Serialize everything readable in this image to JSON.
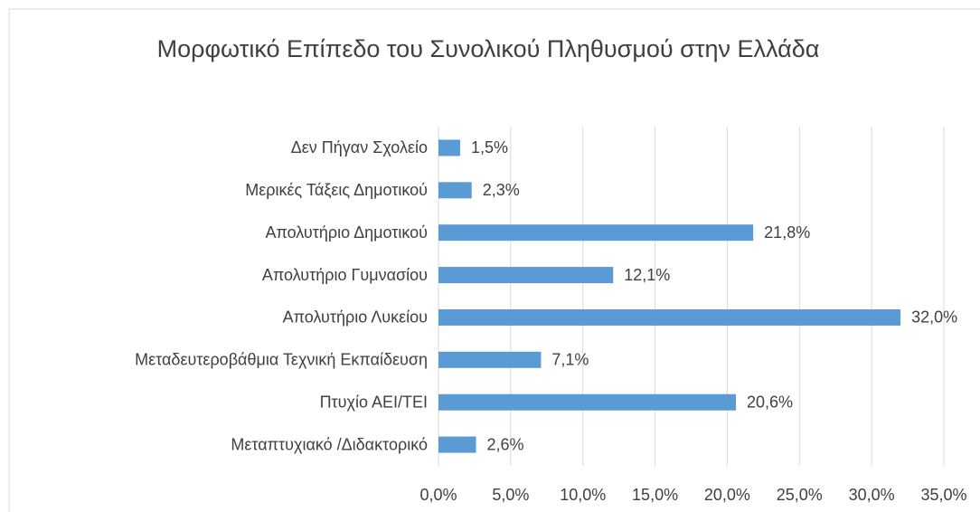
{
  "chart_data": {
    "type": "bar",
    "orientation": "horizontal",
    "title": "Μορφωτικό Επίπεδο του Συνολικού Πληθυσμού στην Ελλάδα",
    "categories": [
      "Δεν Πήγαν Σχολείο",
      "Μερικές Τάξεις Δημοτικού",
      "Απολυτήριο Δημοτικού",
      "Απολυτήριο Γυμνασίου",
      "Απολυτήριο Λυκείου",
      "Μεταδευτεροβάθμια Τεχνική Εκπαίδευση",
      "Πτυχίο ΑΕΙ/ΤΕΙ",
      "Μεταπτυχιακό /Διδακτορικό"
    ],
    "values": [
      1.5,
      2.3,
      21.8,
      12.1,
      32.0,
      7.1,
      20.6,
      2.6
    ],
    "value_labels": [
      "1,5%",
      "2,3%",
      "21,8%",
      "12,1%",
      "32,0%",
      "7,1%",
      "20,6%",
      "2,6%"
    ],
    "color": "#5b9bd5",
    "xlim": [
      0,
      35
    ],
    "xticks": [
      {
        "value": 0,
        "label": "0,0%"
      },
      {
        "value": 5,
        "label": "5,0%"
      },
      {
        "value": 10,
        "label": "10,0%"
      },
      {
        "value": 15,
        "label": "15,0%"
      },
      {
        "value": 20,
        "label": "20,0%"
      },
      {
        "value": 25,
        "label": "25,0%"
      },
      {
        "value": 30,
        "label": "30,0%"
      },
      {
        "value": 35,
        "label": "35,0%"
      }
    ],
    "grid": true
  }
}
